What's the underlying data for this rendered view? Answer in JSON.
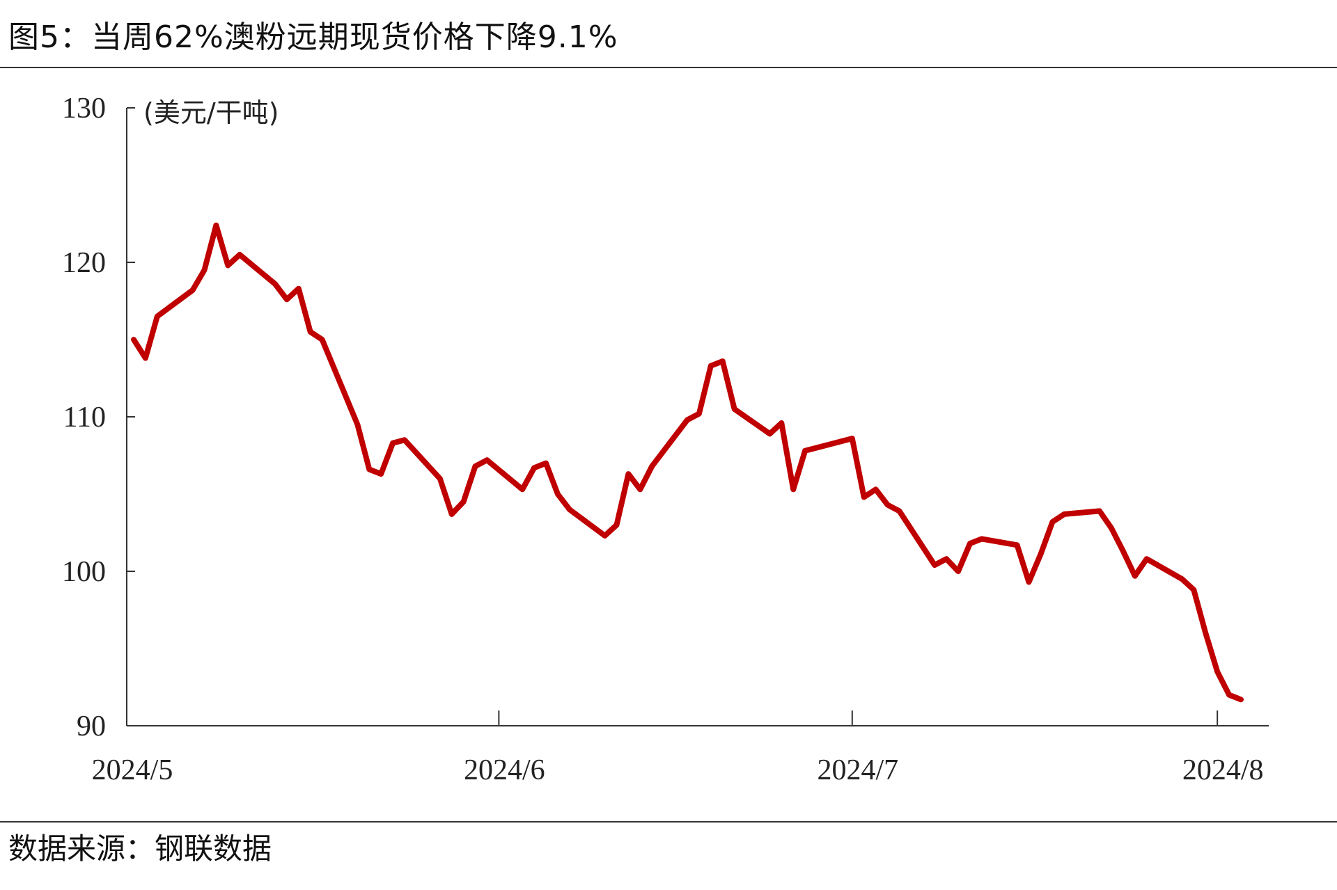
{
  "title": "图5：当周62%澳粉远期现货价格下降9.1%",
  "source": "数据来源：钢联数据",
  "chart_data": {
    "type": "line",
    "unit": "(美元/干吨)",
    "ylim": [
      90,
      130
    ],
    "y_ticks": [
      90,
      100,
      110,
      120,
      130
    ],
    "x_tick_labels": [
      "2024/5",
      "2024/6",
      "2024/7",
      "2024/8"
    ],
    "x_tick_dates": [
      "2024-05-01",
      "2024-06-01",
      "2024-07-01",
      "2024-08-01"
    ],
    "x_range": [
      "2024-05-01",
      "2024-08-03"
    ],
    "grid": false,
    "line_color": "#c00000",
    "series": [
      {
        "x": [
          "2024-05-01",
          "2024-05-02",
          "2024-05-03",
          "2024-05-06",
          "2024-05-07",
          "2024-05-08",
          "2024-05-09",
          "2024-05-10",
          "2024-05-13",
          "2024-05-14",
          "2024-05-15",
          "2024-05-16",
          "2024-05-17",
          "2024-05-20",
          "2024-05-21",
          "2024-05-22",
          "2024-05-23",
          "2024-05-24",
          "2024-05-27",
          "2024-05-28",
          "2024-05-29",
          "2024-05-30",
          "2024-05-31",
          "2024-06-03",
          "2024-06-04",
          "2024-06-05",
          "2024-06-06",
          "2024-06-07",
          "2024-06-10",
          "2024-06-11",
          "2024-06-12",
          "2024-06-13",
          "2024-06-14",
          "2024-06-17",
          "2024-06-18",
          "2024-06-19",
          "2024-06-20",
          "2024-06-21",
          "2024-06-24",
          "2024-06-25",
          "2024-06-26",
          "2024-06-27",
          "2024-06-28",
          "2024-07-01",
          "2024-07-02",
          "2024-07-03",
          "2024-07-04",
          "2024-07-05",
          "2024-07-08",
          "2024-07-09",
          "2024-07-10",
          "2024-07-11",
          "2024-07-12",
          "2024-07-15",
          "2024-07-16",
          "2024-07-17",
          "2024-07-18",
          "2024-07-19",
          "2024-07-22",
          "2024-07-23",
          "2024-07-24",
          "2024-07-25",
          "2024-07-26",
          "2024-07-29",
          "2024-07-30",
          "2024-07-31",
          "2024-08-01",
          "2024-08-02",
          "2024-08-03"
        ],
        "y": [
          115.0,
          113.8,
          116.5,
          118.2,
          119.5,
          122.4,
          119.8,
          120.5,
          118.6,
          117.6,
          118.3,
          115.5,
          115.0,
          109.5,
          106.6,
          106.3,
          108.3,
          108.5,
          106.0,
          103.7,
          104.5,
          106.8,
          107.2,
          105.3,
          106.7,
          107.0,
          105.0,
          104.0,
          102.3,
          103.0,
          106.3,
          105.3,
          106.8,
          109.8,
          110.2,
          113.3,
          113.6,
          110.5,
          108.9,
          109.6,
          105.3,
          107.8,
          108.0,
          108.6,
          104.8,
          105.3,
          104.3,
          103.9,
          100.4,
          100.8,
          100.0,
          101.8,
          102.1,
          101.7,
          99.3,
          101.1,
          103.2,
          103.7,
          103.9,
          102.8,
          101.3,
          99.7,
          100.8,
          99.5,
          98.8,
          96.0,
          93.5,
          92.0,
          91.7
        ]
      }
    ]
  }
}
